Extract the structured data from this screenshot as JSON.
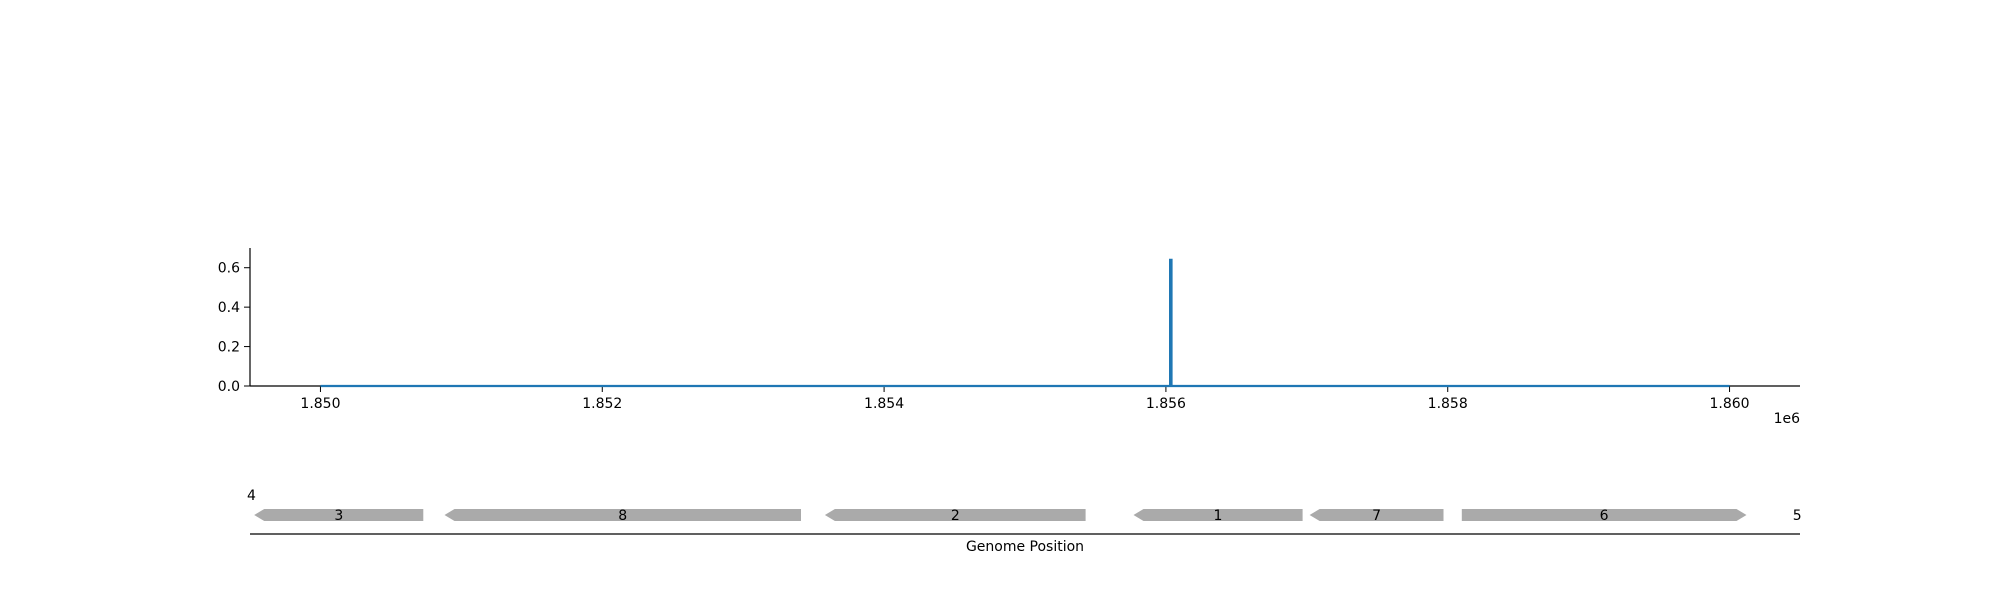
{
  "chart_data": [
    {
      "type": "line",
      "title": "",
      "xlabel": "",
      "ylabel": "",
      "x_offset_label": "1e6",
      "xlim": [
        1849500,
        1860500
      ],
      "ylim": [
        0,
        0.7
      ],
      "x_ticks": [
        1850000,
        1852000,
        1854000,
        1856000,
        1858000,
        1860000
      ],
      "x_tick_labels": [
        "1.850",
        "1.852",
        "1.854",
        "1.856",
        "1.858",
        "1.860"
      ],
      "y_ticks": [
        0.0,
        0.2,
        0.4,
        0.6
      ],
      "y_tick_labels": [
        "0.0",
        "0.2",
        "0.4",
        "0.6"
      ],
      "grid": false,
      "color": "#1f77b4",
      "series": [
        {
          "x": [
            1850000,
            1856030,
            1856030,
            1856040,
            1856040,
            1860000
          ],
          "y": [
            0.0,
            0.0,
            0.64,
            0.64,
            0.0,
            0.0
          ]
        }
      ]
    },
    {
      "type": "gene-track",
      "xlabel": "Genome Position",
      "xlim": [
        1849500,
        1860500
      ],
      "color": "#aaaaaa",
      "genes": [
        {
          "label": "3",
          "start": 1849530,
          "end": 1850730,
          "strand": "-"
        },
        {
          "label": "8",
          "start": 1850880,
          "end": 1853410,
          "strand": "-"
        },
        {
          "label": "2",
          "start": 1853580,
          "end": 1855430,
          "strand": "-"
        },
        {
          "label": "1",
          "start": 1855770,
          "end": 1856970,
          "strand": "-"
        },
        {
          "label": "7",
          "start": 1857020,
          "end": 1857970,
          "strand": "-"
        },
        {
          "label": "6",
          "start": 1858100,
          "end": 1860120,
          "strand": "+"
        }
      ],
      "edge_labels": [
        {
          "label": "4",
          "x": 1849510,
          "row": "upper"
        },
        {
          "label": "5",
          "x": 1860480,
          "row": "lower"
        }
      ]
    }
  ]
}
